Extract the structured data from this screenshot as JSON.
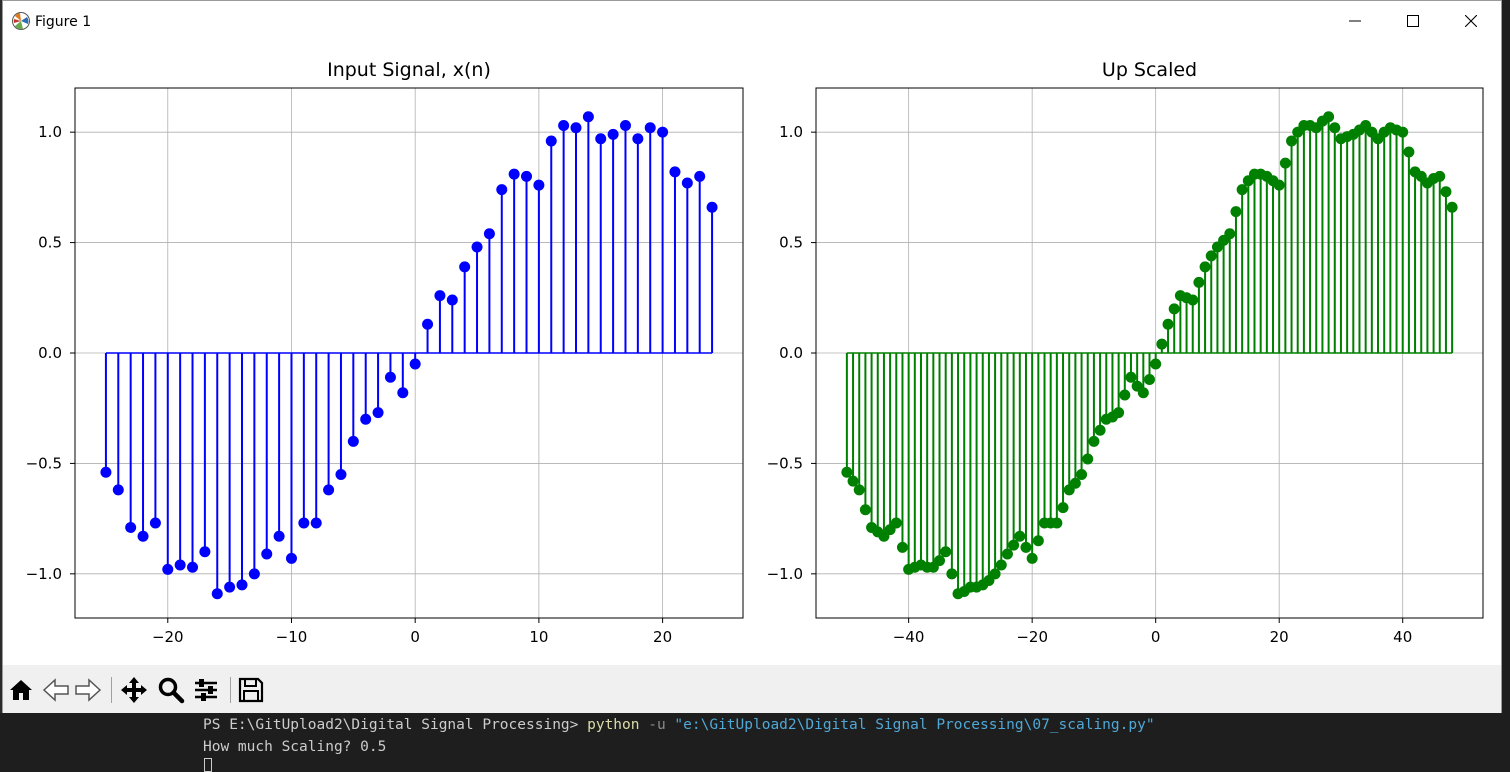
{
  "window": {
    "title": "Figure 1"
  },
  "toolbar": {
    "icons": [
      "home-icon",
      "back-icon",
      "forward-icon",
      "pan-icon",
      "zoom-icon",
      "configure-subplots-icon",
      "save-icon"
    ]
  },
  "terminal": {
    "prompt": "PS E:\\GitUpload2\\Digital Signal Processing> ",
    "command": "python",
    "flag": " -u ",
    "path": "\"e:\\GitUpload2\\Digital Signal Processing\\07_scaling.py\"",
    "output": "How much Scaling? 0.5"
  },
  "chart_data": [
    {
      "type": "stem",
      "title": "Input Signal, x(n)",
      "color": "#0000ff",
      "grid": true,
      "xlim": [
        -27.5,
        26.5
      ],
      "ylim": [
        -1.2,
        1.2
      ],
      "xticks": [
        -20,
        -10,
        0,
        10,
        20
      ],
      "yticks": [
        1.0,
        0.5,
        0.0,
        -0.5,
        -1.0
      ],
      "xtick_labels": [
        "−20",
        "−10",
        "0",
        "10",
        "20"
      ],
      "ytick_labels": [
        "1.0",
        "0.5",
        "0.0",
        "−0.5",
        "−1.0"
      ],
      "x_start": -25,
      "values": [
        -0.54,
        -0.62,
        -0.79,
        -0.83,
        -0.77,
        -0.98,
        -0.96,
        -0.97,
        -0.9,
        -1.09,
        -1.06,
        -1.05,
        -1.0,
        -0.91,
        -0.83,
        -0.93,
        -0.77,
        -0.77,
        -0.62,
        -0.55,
        -0.4,
        -0.3,
        -0.27,
        -0.11,
        -0.18,
        -0.05,
        0.13,
        0.26,
        0.24,
        0.39,
        0.48,
        0.54,
        0.74,
        0.81,
        0.8,
        0.76,
        0.96,
        1.03,
        1.02,
        1.07,
        0.97,
        0.99,
        1.03,
        0.97,
        1.02,
        1.0,
        0.82,
        0.77,
        0.8,
        0.66
      ]
    },
    {
      "type": "stem",
      "title": "Up Scaled",
      "color": "#008000",
      "grid": true,
      "xlim": [
        -55,
        53
      ],
      "ylim": [
        -1.2,
        1.2
      ],
      "xticks": [
        -40,
        -20,
        0,
        20,
        40
      ],
      "yticks": [
        1.0,
        0.5,
        0.0,
        -0.5,
        -1.0
      ],
      "xtick_labels": [
        "−40",
        "−20",
        "0",
        "20",
        "40"
      ],
      "ytick_labels": [
        "1.0",
        "0.5",
        "0.0",
        "−0.5",
        "−1.0"
      ],
      "x_start": -50,
      "values": [
        -0.54,
        -0.58,
        -0.62,
        -0.71,
        -0.79,
        -0.81,
        -0.83,
        -0.8,
        -0.77,
        -0.88,
        -0.98,
        -0.97,
        -0.96,
        -0.97,
        -0.97,
        -0.94,
        -0.9,
        -1.0,
        -1.09,
        -1.08,
        -1.06,
        -1.06,
        -1.05,
        -1.03,
        -1.0,
        -0.96,
        -0.91,
        -0.87,
        -0.83,
        -0.88,
        -0.93,
        -0.85,
        -0.77,
        -0.77,
        -0.77,
        -0.7,
        -0.62,
        -0.59,
        -0.55,
        -0.48,
        -0.4,
        -0.35,
        -0.3,
        -0.29,
        -0.27,
        -0.19,
        -0.11,
        -0.15,
        -0.18,
        -0.12,
        -0.05,
        0.04,
        0.13,
        0.2,
        0.26,
        0.25,
        0.24,
        0.32,
        0.39,
        0.44,
        0.48,
        0.51,
        0.54,
        0.64,
        0.74,
        0.78,
        0.81,
        0.81,
        0.8,
        0.78,
        0.76,
        0.86,
        0.96,
        1.0,
        1.03,
        1.03,
        1.02,
        1.05,
        1.07,
        1.02,
        0.97,
        0.98,
        0.99,
        1.01,
        1.03,
        1.0,
        0.97,
        1.0,
        1.02,
        1.01,
        1.0,
        0.91,
        0.82,
        0.8,
        0.77,
        0.79,
        0.8,
        0.73,
        0.66
      ]
    }
  ]
}
